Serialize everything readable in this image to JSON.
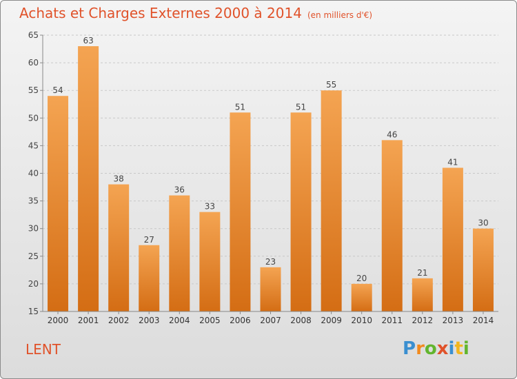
{
  "header": {
    "title": "Achats et Charges Externes 2000 à 2014",
    "subtitle": "(en milliers d'€)"
  },
  "footer": {
    "commune": "LENT",
    "logo": {
      "letters": [
        "P",
        "r",
        "o",
        "x",
        "i",
        "t",
        "i"
      ],
      "colors": [
        "#3a8fd0",
        "#f28a1e",
        "#62b52e",
        "#e0522a",
        "#3a8fd0",
        "#f2b61e",
        "#62b52e"
      ]
    }
  },
  "colors": {
    "bar_top": "#f4a452",
    "bar_bottom": "#d46d14",
    "accent": "#e0522a"
  },
  "chart_data": {
    "type": "bar",
    "categories": [
      "2000",
      "2001",
      "2002",
      "2003",
      "2004",
      "2005",
      "2006",
      "2007",
      "2008",
      "2009",
      "2010",
      "2011",
      "2012",
      "2013",
      "2014"
    ],
    "values": [
      54,
      63,
      38,
      27,
      36,
      33,
      51,
      23,
      51,
      55,
      20,
      46,
      21,
      41,
      30
    ],
    "ylim": [
      15,
      65
    ],
    "yticks": [
      15,
      20,
      25,
      30,
      35,
      40,
      45,
      50,
      55,
      60,
      65
    ],
    "grid": true,
    "data_labels": true
  }
}
